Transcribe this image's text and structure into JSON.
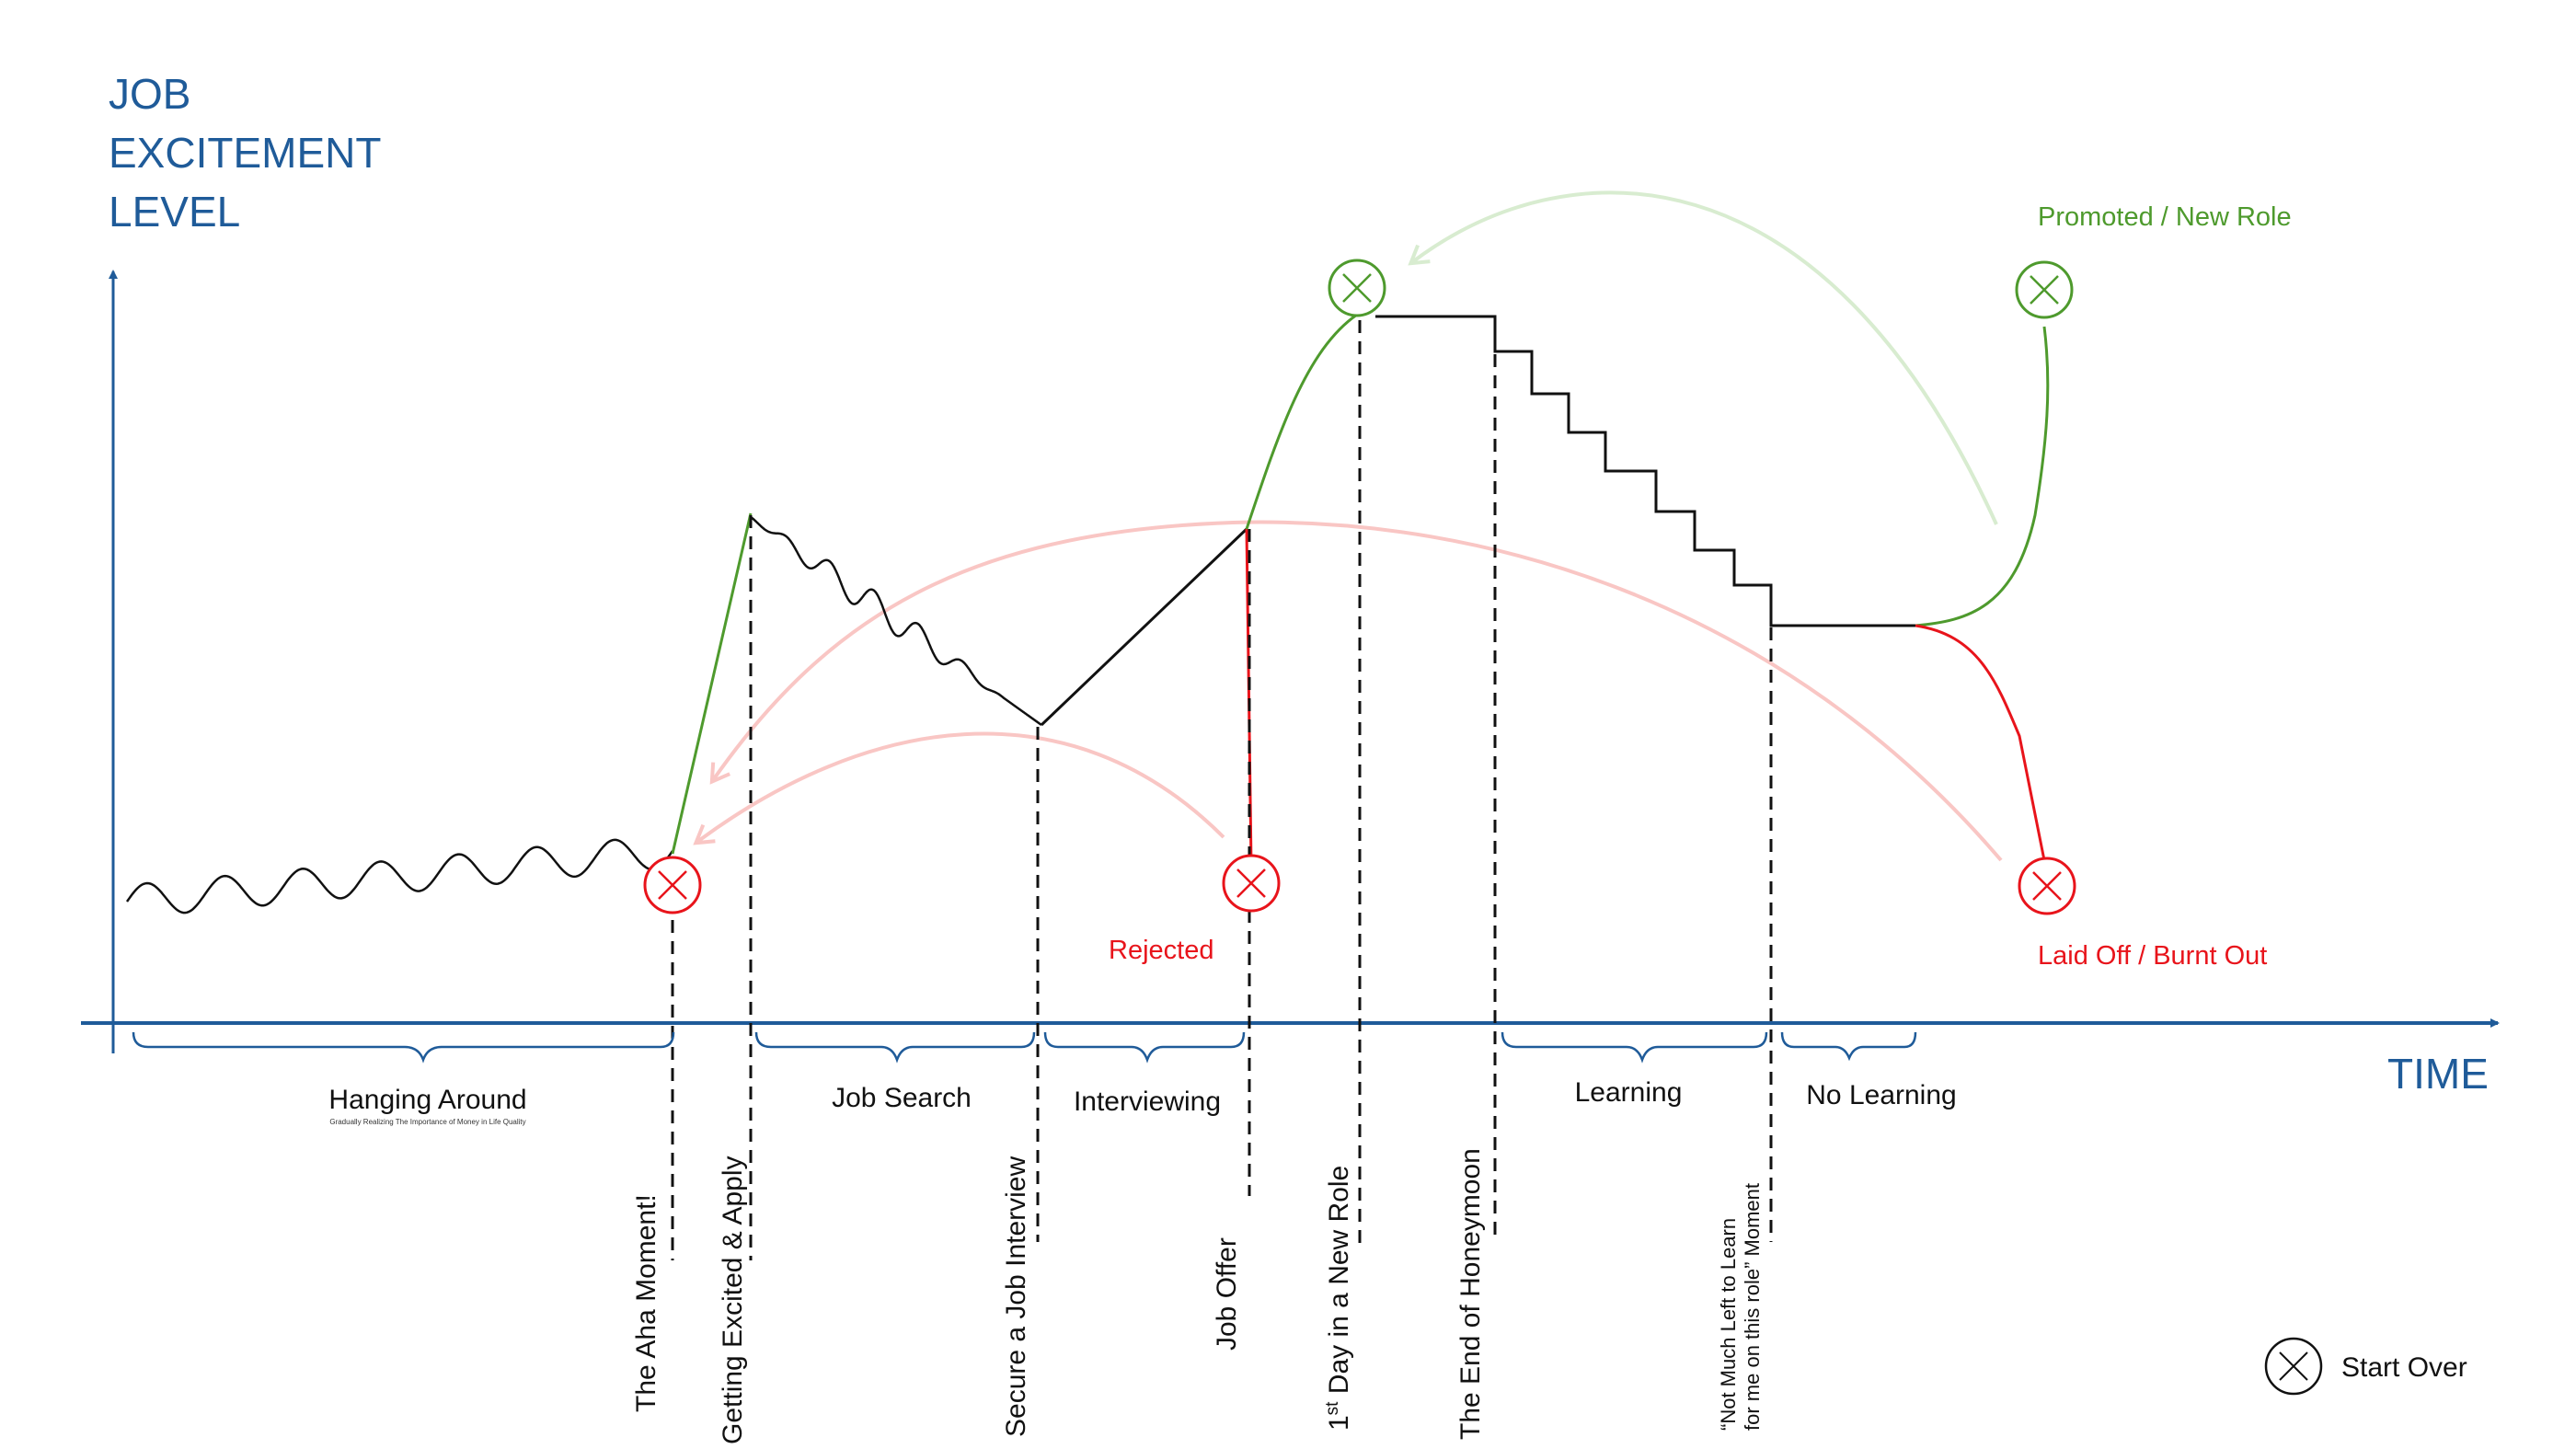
{
  "axes": {
    "y_title_lines": [
      "JOB",
      "EXCITEMENT",
      "LEVEL"
    ],
    "x_title": "TIME",
    "color": "#1f5b99"
  },
  "phases": {
    "hanging_around": "Hanging Around",
    "hanging_around_sub": "Gradually Realizing The Importance of Money in Life Quality",
    "job_search": "Job Search",
    "interviewing": "Interviewing",
    "learning": "Learning",
    "no_learning": "No Learning"
  },
  "milestones": {
    "aha": "The Aha Moment!",
    "excited": "Getting Excited & Apply",
    "secure": "Secure a Job Interview",
    "offer": "Job Offer",
    "first_day_prefix": "1",
    "first_day_sup": "st",
    "first_day_rest": " Day in a New Role",
    "honeymoon": "The End of Honeymoon",
    "not_much_line1": "“Not Much Left to Learn",
    "not_much_line2": "for me on this role” Moment"
  },
  "outcomes": {
    "rejected": "Rejected",
    "promoted": "Promoted / New Role",
    "laid_off": "Laid Off / Burnt Out"
  },
  "legend": {
    "start_over": "Start Over"
  },
  "colors": {
    "green": "#4e9a2d",
    "red": "#e8141b",
    "light_green": "#d8ecd0",
    "light_red": "#f9c6c4",
    "black": "#111111",
    "blue": "#1f5b99"
  }
}
